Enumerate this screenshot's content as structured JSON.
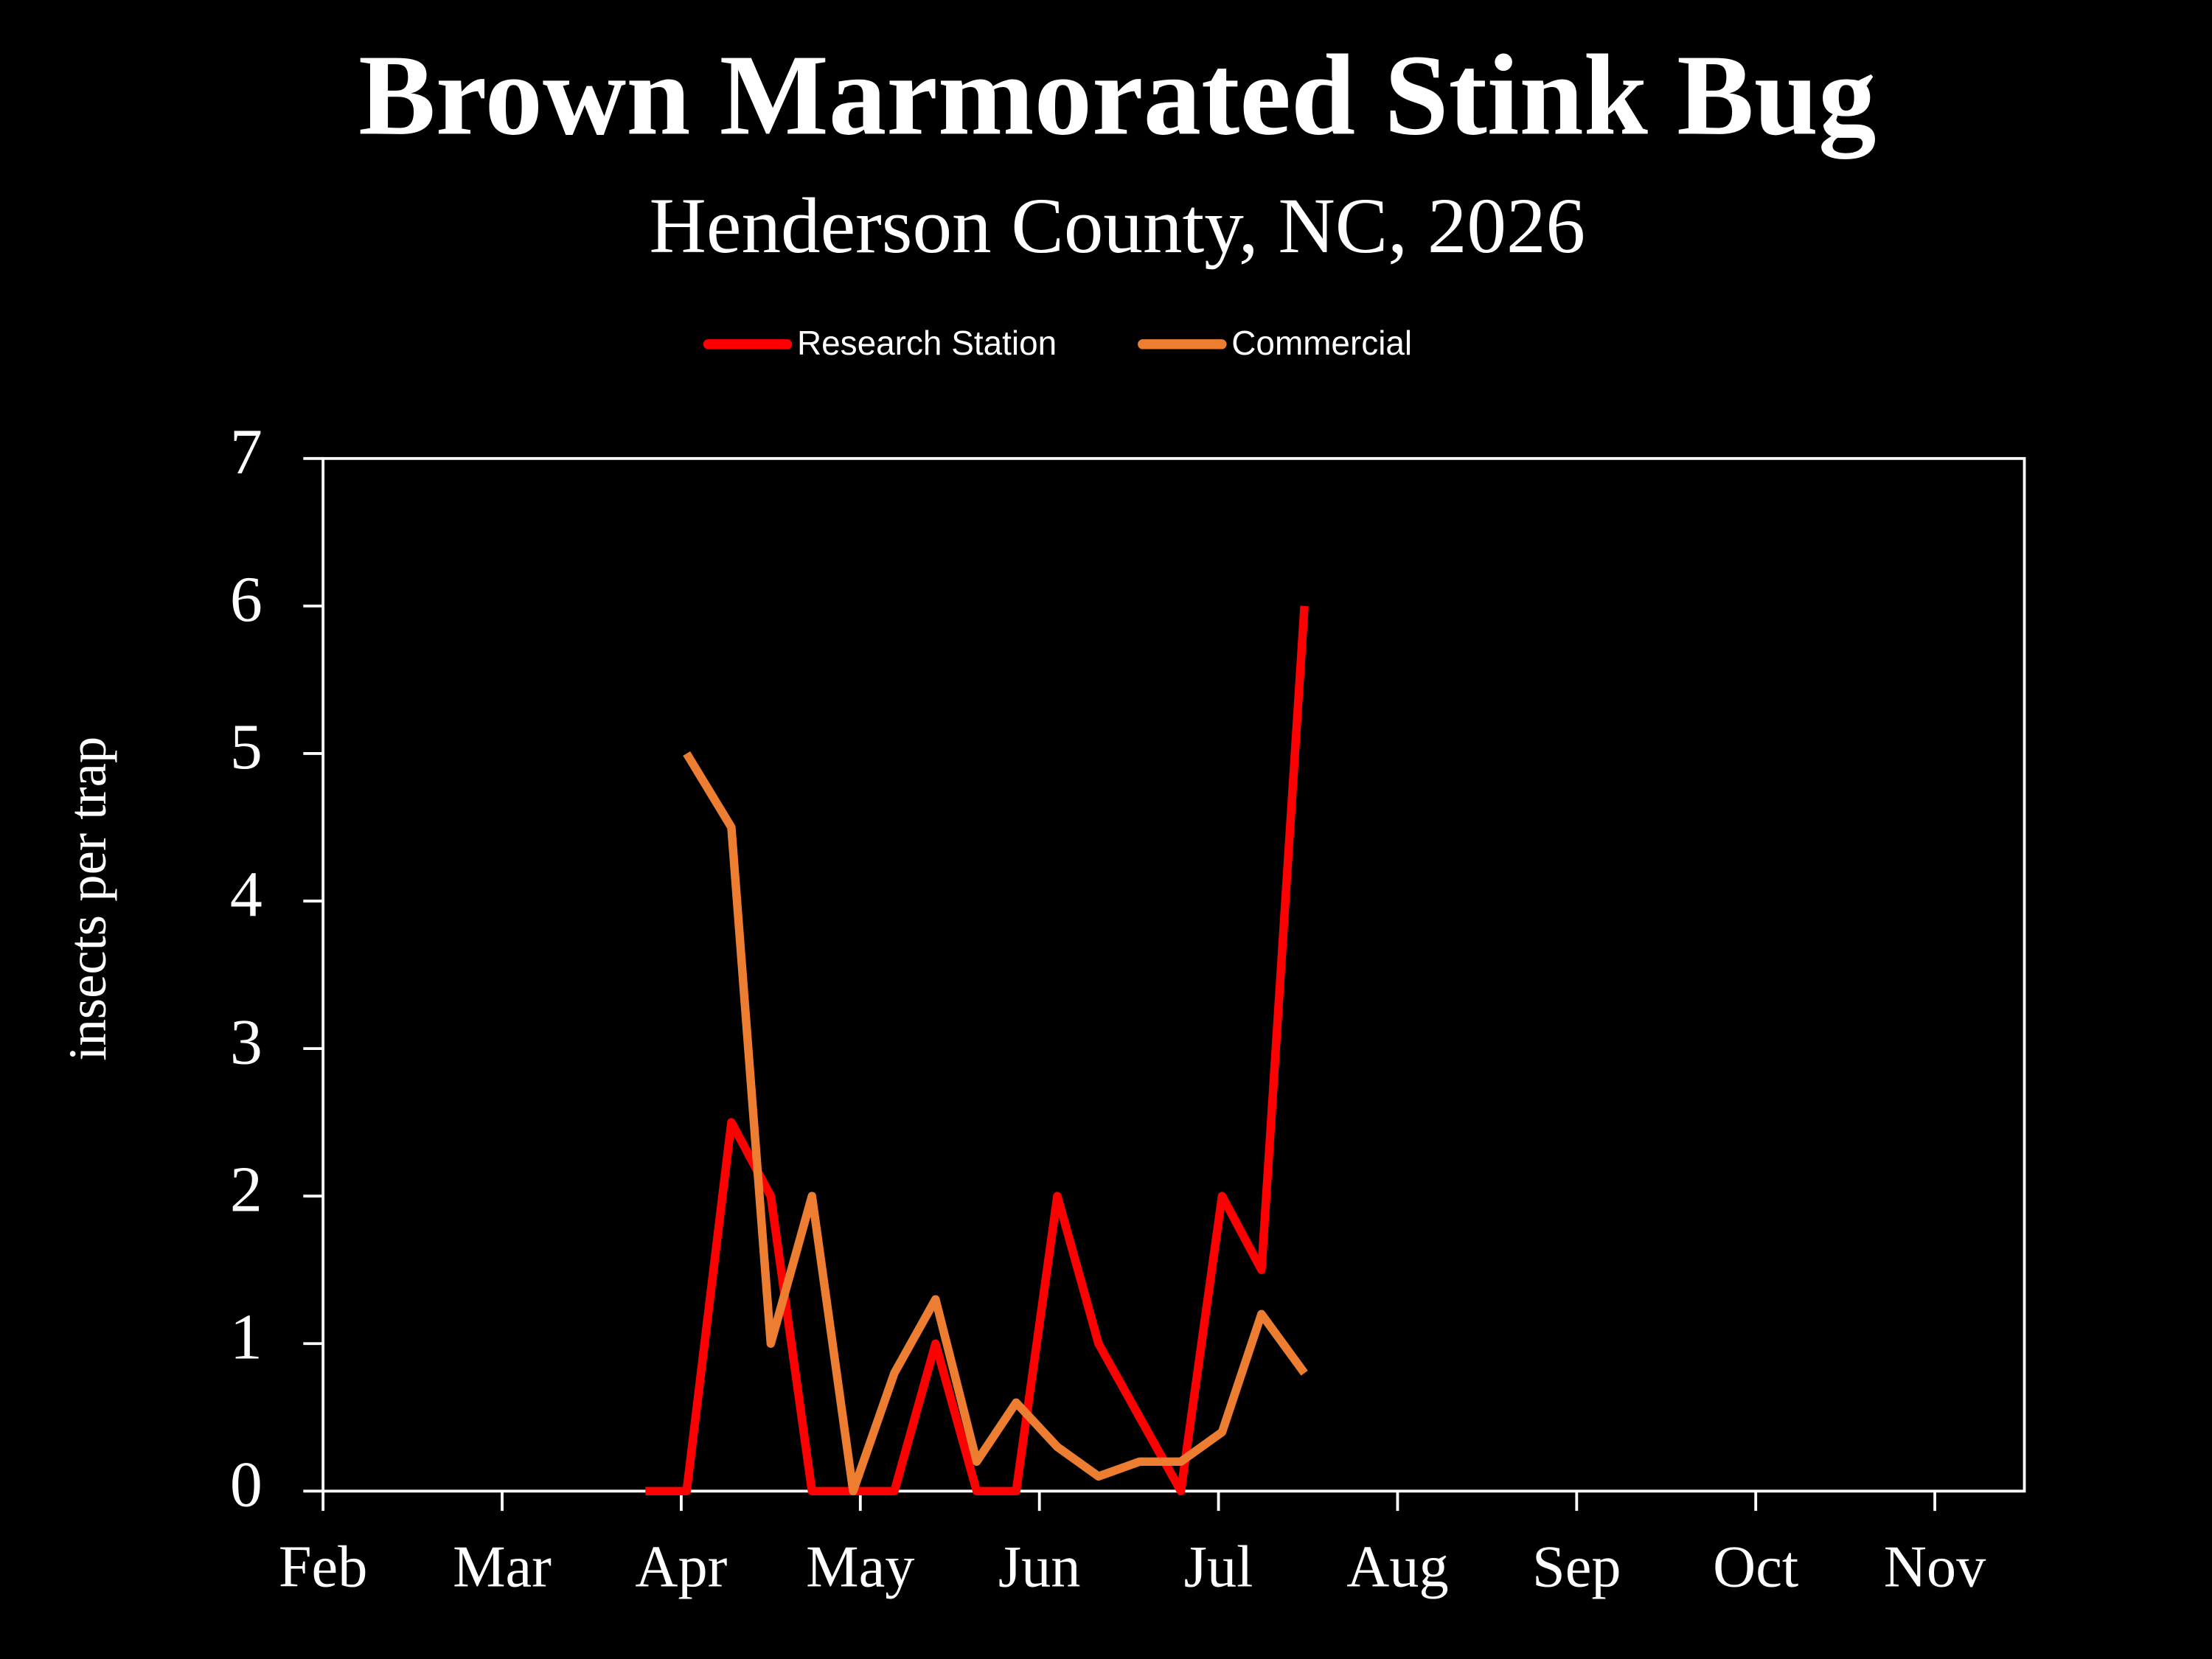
{
  "chart_data": {
    "type": "line",
    "title": "Brown Marmorated Stink Bug",
    "subtitle": "Henderson County, NC, 2026",
    "ylabel": "insects per trap",
    "x": [
      3.8,
      4.03,
      4.28,
      4.5,
      4.73,
      4.96,
      5.19,
      5.42,
      5.65,
      5.87,
      6.1,
      6.33,
      6.56,
      6.79,
      7.02,
      7.24,
      7.48
    ],
    "series": [
      {
        "name": "Research Station",
        "color": "#ff0000",
        "values": [
          0,
          0,
          2.5,
          2,
          0,
          0,
          0,
          1,
          0,
          0,
          2,
          1,
          0.5,
          0,
          2,
          1.5,
          6
        ]
      },
      {
        "name": "Commercial",
        "color": "#ed7d31",
        "values": [
          null,
          5,
          4.5,
          1,
          2,
          0,
          0.8,
          1.3,
          0.2,
          0.6,
          0.3,
          0.1,
          0.2,
          0.2,
          0.4,
          1.2,
          0.8
        ]
      }
    ],
    "xlim": [
      2,
      11.5
    ],
    "xticks": [
      {
        "value": 2,
        "label": "Feb"
      },
      {
        "value": 3,
        "label": "Mar"
      },
      {
        "value": 4,
        "label": "Apr"
      },
      {
        "value": 5,
        "label": "May"
      },
      {
        "value": 6,
        "label": "Jun"
      },
      {
        "value": 7,
        "label": "Jul"
      },
      {
        "value": 8,
        "label": "Aug"
      },
      {
        "value": 9,
        "label": "Sep"
      },
      {
        "value": 10,
        "label": "Oct"
      },
      {
        "value": 11,
        "label": "Nov"
      }
    ],
    "ylim": [
      0,
      7
    ],
    "yticks": [
      0,
      1,
      2,
      3,
      4,
      5,
      6,
      7
    ],
    "grid": false,
    "legend": "top"
  }
}
